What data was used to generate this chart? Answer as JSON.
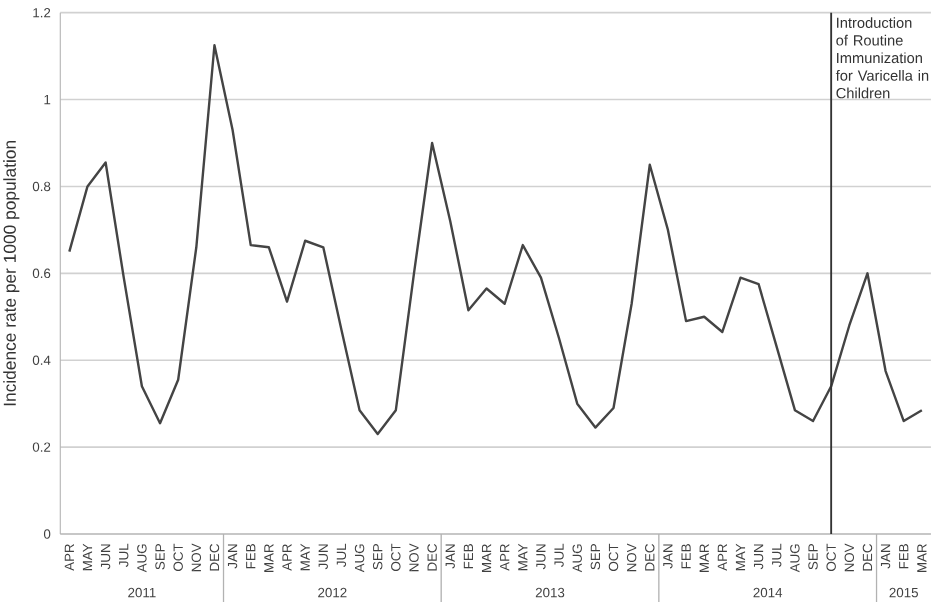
{
  "chart_data": {
    "type": "line",
    "ylabel": "Incidence rate per 1000 population",
    "x": [
      "2011-04",
      "2011-05",
      "2011-06",
      "2011-07",
      "2011-08",
      "2011-09",
      "2011-10",
      "2011-11",
      "2011-12",
      "2012-01",
      "2012-02",
      "2012-03",
      "2012-04",
      "2012-05",
      "2012-06",
      "2012-07",
      "2012-08",
      "2012-09",
      "2012-10",
      "2012-11",
      "2012-12",
      "2013-01",
      "2013-02",
      "2013-03",
      "2013-04",
      "2013-05",
      "2013-06",
      "2013-07",
      "2013-08",
      "2013-09",
      "2013-10",
      "2013-11",
      "2013-12",
      "2014-01",
      "2014-02",
      "2014-03",
      "2014-04",
      "2014-05",
      "2014-06",
      "2014-07",
      "2014-08",
      "2014-09",
      "2014-10",
      "2014-11",
      "2014-12",
      "2015-01",
      "2015-02",
      "2015-03"
    ],
    "series": [
      {
        "color": "#444444",
        "values": [
          0.65,
          0.8,
          0.855,
          0.59,
          0.34,
          0.255,
          0.355,
          0.66,
          1.125,
          0.93,
          0.665,
          0.66,
          0.535,
          0.675,
          0.66,
          0.47,
          0.285,
          0.23,
          0.285,
          0.6,
          0.9,
          0.72,
          0.515,
          0.565,
          0.53,
          0.665,
          0.59,
          0.45,
          0.3,
          0.245,
          0.29,
          0.53,
          0.85,
          0.7,
          0.49,
          0.5,
          0.465,
          0.59,
          0.575,
          0.43,
          0.285,
          0.26,
          0.34,
          0.48,
          0.6,
          0.375,
          0.26,
          0.285
        ]
      }
    ],
    "xlim": [
      "2011-03-16",
      "2015-03-16"
    ],
    "xticks": [
      {
        "value": "2011-04",
        "label": "APR"
      },
      {
        "value": "2011-05",
        "label": "MAY"
      },
      {
        "value": "2011-06",
        "label": "JUN"
      },
      {
        "value": "2011-07",
        "label": "JUL"
      },
      {
        "value": "2011-08",
        "label": "AUG"
      },
      {
        "value": "2011-09",
        "label": "SEP"
      },
      {
        "value": "2011-10",
        "label": "OCT"
      },
      {
        "value": "2011-11",
        "label": "NOV"
      },
      {
        "value": "2011-12",
        "label": "DEC"
      },
      {
        "value": "2012-01",
        "label": "JAN"
      },
      {
        "value": "2012-02",
        "label": "FEB"
      },
      {
        "value": "2012-03",
        "label": "MAR"
      },
      {
        "value": "2012-04",
        "label": "APR"
      },
      {
        "value": "2012-05",
        "label": "MAY"
      },
      {
        "value": "2012-06",
        "label": "JUN"
      },
      {
        "value": "2012-07",
        "label": "JUL"
      },
      {
        "value": "2012-08",
        "label": "AUG"
      },
      {
        "value": "2012-09",
        "label": "SEP"
      },
      {
        "value": "2012-10",
        "label": "OCT"
      },
      {
        "value": "2012-11",
        "label": "NOV"
      },
      {
        "value": "2012-12",
        "label": "DEC"
      },
      {
        "value": "2013-01",
        "label": "JAN"
      },
      {
        "value": "2013-02",
        "label": "FEB"
      },
      {
        "value": "2013-03",
        "label": "MAR"
      },
      {
        "value": "2013-04",
        "label": "APR"
      },
      {
        "value": "2013-05",
        "label": "MAY"
      },
      {
        "value": "2013-06",
        "label": "JUN"
      },
      {
        "value": "2013-07",
        "label": "JUL"
      },
      {
        "value": "2013-08",
        "label": "AUG"
      },
      {
        "value": "2013-09",
        "label": "SEP"
      },
      {
        "value": "2013-10",
        "label": "OCT"
      },
      {
        "value": "2013-11",
        "label": "NOV"
      },
      {
        "value": "2013-12",
        "label": "DEC"
      },
      {
        "value": "2014-01",
        "label": "JAN"
      },
      {
        "value": "2014-02",
        "label": "FEB"
      },
      {
        "value": "2014-03",
        "label": "MAR"
      },
      {
        "value": "2014-04",
        "label": "APR"
      },
      {
        "value": "2014-05",
        "label": "MAY"
      },
      {
        "value": "2014-06",
        "label": "JUN"
      },
      {
        "value": "2014-07",
        "label": "JUL"
      },
      {
        "value": "2014-08",
        "label": "AUG"
      },
      {
        "value": "2014-09",
        "label": "SEP"
      },
      {
        "value": "2014-10",
        "label": "OCT"
      },
      {
        "value": "2014-11",
        "label": "NOV"
      },
      {
        "value": "2014-12",
        "label": "DEC"
      },
      {
        "value": "2015-01",
        "label": "JAN"
      },
      {
        "value": "2015-02",
        "label": "FEB"
      },
      {
        "value": "2015-03",
        "label": "MAR"
      }
    ],
    "ylim": [
      0,
      1.2
    ],
    "yticks": [
      0,
      0.2,
      0.4,
      0.6,
      0.8,
      1,
      1.2
    ],
    "grid": "y",
    "marker": "none",
    "line_style": "solid",
    "ref_lines": [
      {
        "axis": "x",
        "value": "2014-10",
        "label": "Introduction of Routine Immunization for Varicella in Children",
        "color": "#333333"
      }
    ],
    "annotations": [
      "2011",
      "2012",
      "2013",
      "2014",
      "2015"
    ]
  }
}
